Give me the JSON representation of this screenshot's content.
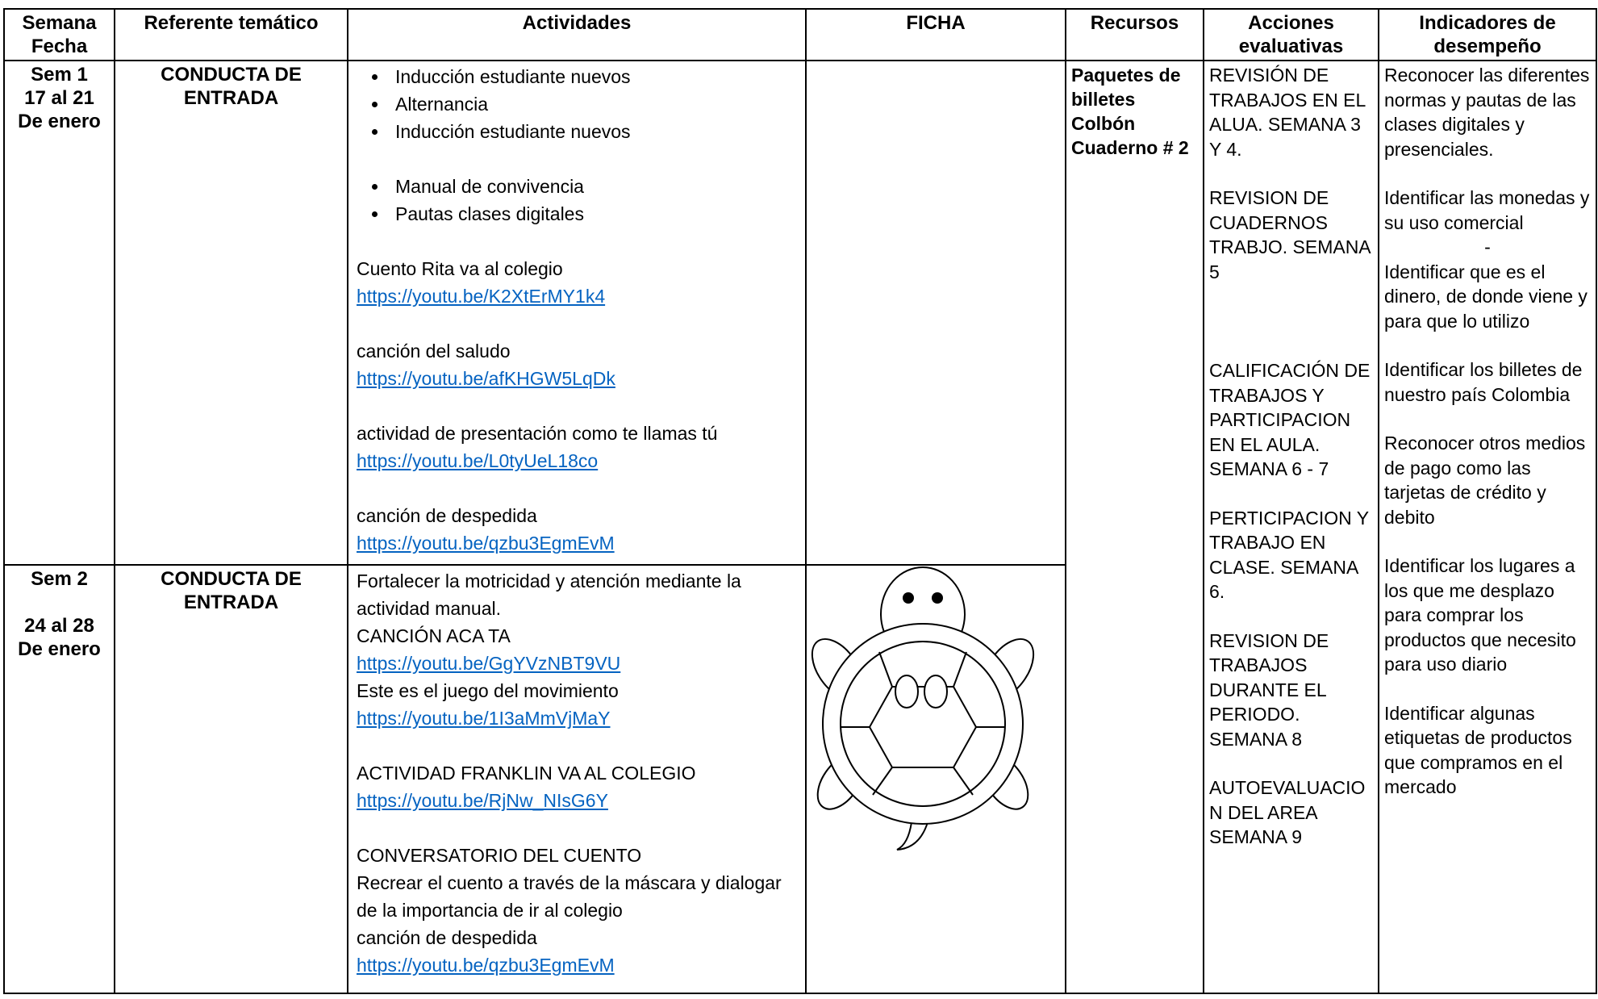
{
  "table": {
    "header": [
      "Semana Fecha",
      "Referente temático",
      "Actividades",
      "FICHA",
      "Recursos",
      "Acciones evaluativas",
      "Indicadores de desempeño"
    ],
    "rows": [
      {
        "week": [
          "Sem 1",
          "17 al 21",
          "De enero"
        ],
        "topic": "CONDUCTA DE ENTRADA",
        "activities": [
          {
            "bullets": [
              "Inducción estudiante nuevos",
              "Alternancia",
              "Inducción estudiante nuevos"
            ]
          },
          {
            "bullets": [
              "Manual de convivencia",
              "Pautas clases digitales"
            ]
          },
          {
            "lines": [
              "Cuento Rita va al colegio",
              "https://youtu.be/K2XtErMY1k4"
            ]
          },
          {
            "lines": [
              "canción del saludo",
              "https://youtu.be/afKHGW5LqDk"
            ]
          },
          {
            "lines": [
              "actividad de presentación como te llamas tú",
              "https://youtu.be/L0tyUeL18co"
            ]
          },
          {
            "lines": [
              "canción de despedida",
              "https://youtu.be/qzbu3EgmEvM"
            ]
          }
        ]
      },
      {
        "week": [
          "Sem 2",
          "24 al 28",
          "De enero"
        ],
        "topic": "CONDUCTA DE ENTRADA",
        "activities": [
          {
            "lines": [
              "Fortalecer la motricidad y atención mediante la actividad manual.",
              "CANCIÓN ACA TA",
              "https://youtu.be/GgYVzNBT9VU",
              "Este es el juego del movimiento",
              "https://youtu.be/1I3aMmVjMaY"
            ]
          },
          {
            "lines": [
              "ACTIVIDAD FRANKLIN VA AL COLEGIO",
              "https://youtu.be/RjNw_NIsG6Y"
            ]
          },
          {
            "lines": [
              "CONVERSATORIO DEL CUENTO",
              "Recrear el cuento a través de la máscara y dialogar de la importancia de ir al colegio",
              "canción de despedida",
              "https://youtu.be/qzbu3EgmEvM"
            ]
          }
        ]
      }
    ],
    "resources": [
      "Paquetes de billetes",
      "Colbón",
      "Cuaderno # 2"
    ],
    "evaluation": [
      "REVISIÓN DE TRABAJOS EN EL ALUA. SEMANA 3 Y 4.",
      "REVISION DE CUADERNOS TRABJO. SEMANA 5",
      "CALIFICACIÓN DE TRABAJOS Y PARTICIPACION EN EL AULA. SEMANA 6 - 7",
      "PERTICIPACION Y TRABAJO EN CLASE. SEMANA 6.",
      "REVISION DE TRABAJOS DURANTE EL PERIODO. SEMANA 8",
      "AUTOEVALUACION DEL AREA SEMANA 9"
    ],
    "indicators": [
      "Reconocer las diferentes normas y pautas de las clases digitales y presenciales.",
      "Identificar las monedas y su uso comercial",
      "-",
      "Identificar que es el dinero, de donde viene y para que lo utilizo",
      "Identificar los billetes de nuestro país Colombia",
      "Reconocer otros medios de pago como las tarjetas de crédito y debito",
      "Identificar los lugares a los que me desplazo para comprar los productos que necesito para uso diario",
      "Identificar algunas etiquetas de productos que compramos en el mercado"
    ]
  }
}
